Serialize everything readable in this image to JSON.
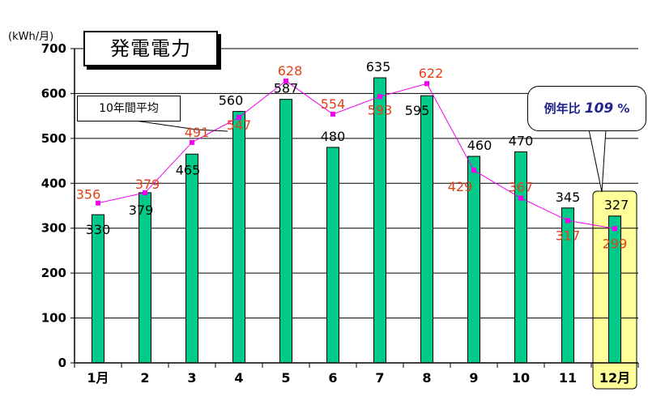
{
  "chart_data": {
    "type": "bar",
    "title": "発電電力",
    "ylabel": "(kWh/月)",
    "ylim": [
      0,
      700
    ],
    "yticks": [
      0,
      100,
      200,
      300,
      400,
      500,
      600,
      700
    ],
    "categories": [
      "1月",
      "2",
      "3",
      "4",
      "5",
      "6",
      "7",
      "8",
      "9",
      "10",
      "11",
      "12月"
    ],
    "series": [
      {
        "name": "",
        "type": "bar",
        "color": "#00c98a",
        "values": [
          330,
          379,
          465,
          560,
          587,
          480,
          635,
          595,
          460,
          470,
          345,
          327
        ]
      },
      {
        "name": "10年間平均",
        "type": "line",
        "color": "#ee00ee",
        "label_color": "#e0401a",
        "values": [
          356,
          379,
          491,
          547,
          628,
          554,
          593,
          622,
          429,
          367,
          317,
          299
        ]
      }
    ],
    "highlight_category": "12月",
    "highlight_color": "#ffff99",
    "grid": true,
    "annotations": {
      "average_label": "10年間平均",
      "ratio_label": "例年比",
      "ratio_value": "109",
      "ratio_unit": "%"
    }
  }
}
